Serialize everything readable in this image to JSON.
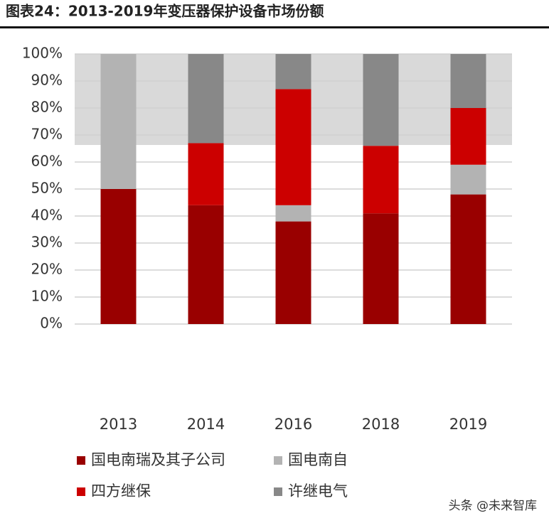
{
  "chart_data": {
    "type": "stacked_bar",
    "title": "图表24：2013-2019年变压器保护设备市场份额",
    "categories": [
      "2013",
      "2014",
      "2016",
      "2018",
      "2019"
    ],
    "series": [
      {
        "name": "国电南瑞及其子公司",
        "color": "#990000",
        "values": [
          50,
          44,
          38,
          41,
          48
        ]
      },
      {
        "name": "国电南自",
        "color": "#b3b3b3",
        "values": [
          50,
          0,
          6,
          0,
          11
        ]
      },
      {
        "name": "四方继保",
        "color": "#cc0000",
        "values": [
          0,
          23,
          43,
          25,
          21
        ]
      },
      {
        "name": "许继电气",
        "color": "#888888",
        "values": [
          0,
          33,
          13,
          34,
          20
        ]
      }
    ],
    "ylim": [
      0,
      100
    ],
    "yticks": [
      {
        "value": 0,
        "label": "0%"
      },
      {
        "value": 10,
        "label": "10%"
      },
      {
        "value": 20,
        "label": "20%"
      },
      {
        "value": 30,
        "label": "30%"
      },
      {
        "value": 40,
        "label": "40%"
      },
      {
        "value": 50,
        "label": "50%"
      },
      {
        "value": 60,
        "label": "60%"
      },
      {
        "value": 70,
        "label": "70%"
      },
      {
        "value": 80,
        "label": "80%"
      },
      {
        "value": 90,
        "label": "90%"
      },
      {
        "value": 100,
        "label": "100%"
      }
    ],
    "grid": true,
    "legend": "bottom",
    "watermark": "头条 @未来智库"
  }
}
